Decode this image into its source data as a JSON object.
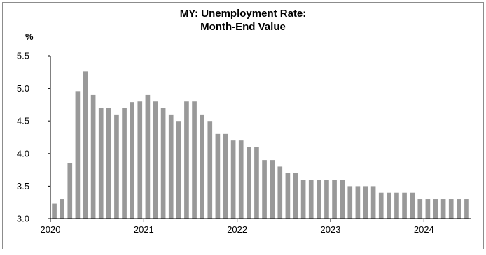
{
  "chart_data": {
    "type": "bar",
    "title_lines": [
      "MY: Unemployment Rate:",
      "Month-End Value"
    ],
    "ylabel": "%",
    "xlabel": "",
    "ylim": [
      3.0,
      5.5
    ],
    "yticks": [
      "3.0",
      "3.5",
      "4.0",
      "4.5",
      "5.0",
      "5.5"
    ],
    "xticks": [
      "2020",
      "2021",
      "2022",
      "2023",
      "2024"
    ],
    "xstart": "2020-01",
    "grid": false,
    "legend": "none",
    "bar_color": "#999999",
    "categories": [
      "2020-01",
      "2020-02",
      "2020-03",
      "2020-04",
      "2020-05",
      "2020-06",
      "2020-07",
      "2020-08",
      "2020-09",
      "2020-10",
      "2020-11",
      "2020-12",
      "2021-01",
      "2021-02",
      "2021-03",
      "2021-04",
      "2021-05",
      "2021-06",
      "2021-07",
      "2021-08",
      "2021-09",
      "2021-10",
      "2021-11",
      "2021-12",
      "2022-01",
      "2022-02",
      "2022-03",
      "2022-04",
      "2022-05",
      "2022-06",
      "2022-07",
      "2022-08",
      "2022-09",
      "2022-10",
      "2022-11",
      "2022-12",
      "2023-01",
      "2023-02",
      "2023-03",
      "2023-04",
      "2023-05",
      "2023-06",
      "2023-07",
      "2023-08",
      "2023-09",
      "2023-10",
      "2023-11",
      "2023-12",
      "2024-01",
      "2024-02",
      "2024-03",
      "2024-04",
      "2024-05",
      "2024-06"
    ],
    "values": [
      3.23,
      3.3,
      3.85,
      4.96,
      5.26,
      4.9,
      4.7,
      4.7,
      4.6,
      4.7,
      4.79,
      4.8,
      4.9,
      4.8,
      4.7,
      4.6,
      4.5,
      4.8,
      4.8,
      4.6,
      4.5,
      4.3,
      4.3,
      4.2,
      4.2,
      4.1,
      4.1,
      3.9,
      3.9,
      3.8,
      3.7,
      3.7,
      3.6,
      3.6,
      3.6,
      3.6,
      3.6,
      3.6,
      3.5,
      3.5,
      3.5,
      3.5,
      3.4,
      3.4,
      3.4,
      3.4,
      3.4,
      3.3,
      3.3,
      3.3,
      3.3,
      3.3,
      3.3,
      3.3
    ]
  }
}
